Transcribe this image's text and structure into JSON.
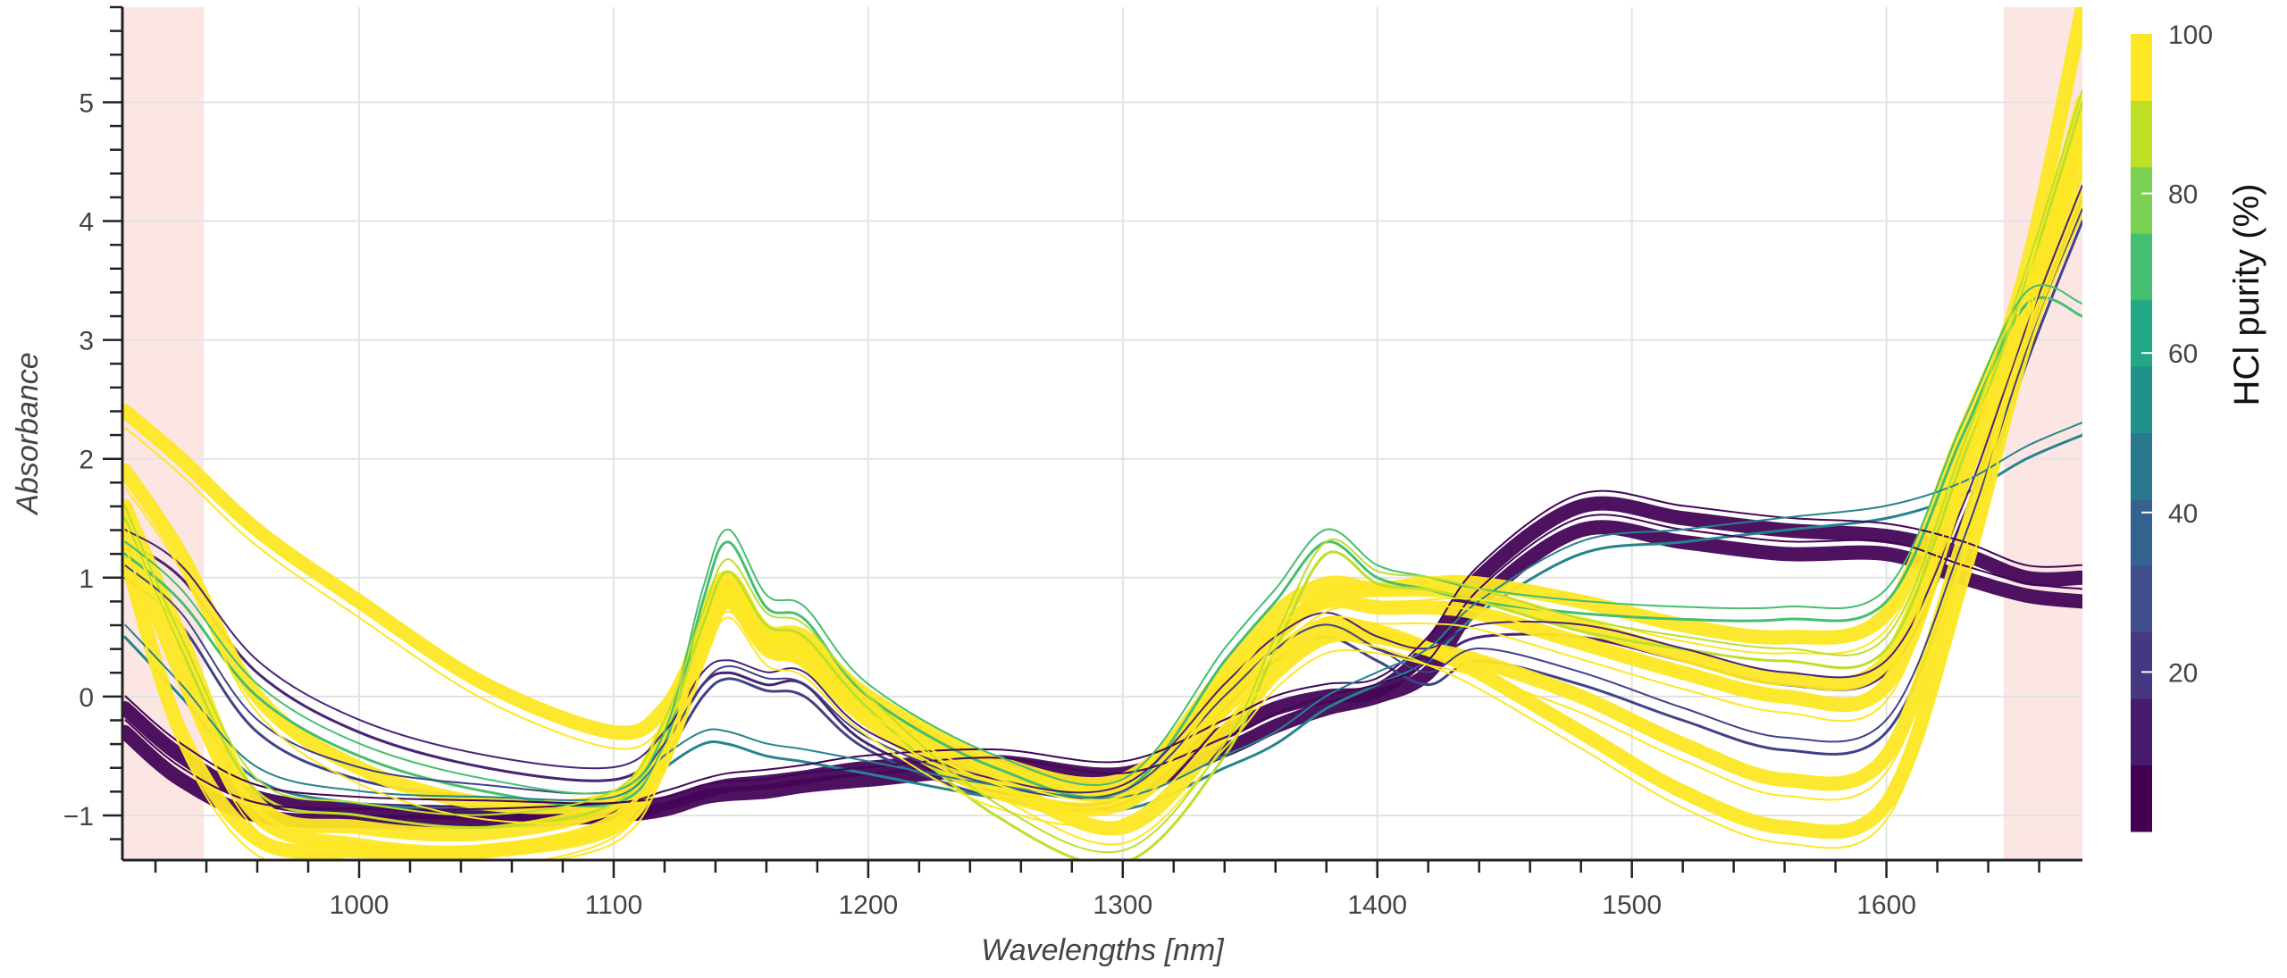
{
  "chart_data": {
    "type": "line",
    "xlabel": "Wavelengths [nm]",
    "ylabel": "Absorbance",
    "xlim": [
      907,
      1677
    ],
    "ylim": [
      -1.376,
      5.8
    ],
    "x_ticks": [
      "1000",
      "1100",
      "1200",
      "1300",
      "1400",
      "1500",
      "1600"
    ],
    "y_ticks": [
      "−1",
      "0",
      "1",
      "2",
      "3",
      "4",
      "5"
    ],
    "grid": true,
    "shaded_regions": [
      [
        907,
        939
      ],
      [
        1646,
        1677
      ]
    ],
    "shaded_color": "#fbe6e4",
    "colorbar": {
      "title": "HCl purity (%)",
      "range": [
        0,
        100
      ],
      "ticks": [
        "20",
        "40",
        "60",
        "80",
        "100"
      ],
      "colormap": "viridis",
      "bins": [
        "#440154",
        "#471c6c",
        "#453781",
        "#3d4e8a",
        "#34618d",
        "#2a788e",
        "#21918c",
        "#22a884",
        "#44bf70",
        "#7ad151",
        "#bddf26",
        "#fde725"
      ],
      "placement": "right"
    },
    "x": [
      908,
      930,
      960,
      1000,
      1050,
      1100,
      1120,
      1135,
      1145,
      1160,
      1175,
      1200,
      1250,
      1300,
      1340,
      1360,
      1380,
      1400,
      1420,
      1440,
      1480,
      1520,
      1560,
      1600,
      1630,
      1655,
      1677
    ],
    "series": [
      {
        "purity": 1,
        "values": [
          -0.1,
          -0.5,
          -0.85,
          -0.95,
          -0.98,
          -1.0,
          -0.9,
          -0.8,
          -0.75,
          -0.72,
          -0.68,
          -0.6,
          -0.55,
          -0.65,
          -0.3,
          -0.1,
          0.0,
          0.05,
          0.4,
          1.0,
          1.6,
          1.5,
          1.4,
          1.35,
          1.2,
          1.0,
          1.0
        ]
      },
      {
        "purity": 1,
        "values": [
          -0.3,
          -0.7,
          -1.0,
          -1.05,
          -1.05,
          -1.0,
          -0.95,
          -0.85,
          -0.82,
          -0.8,
          -0.75,
          -0.7,
          -0.62,
          -0.75,
          -0.45,
          -0.25,
          -0.1,
          0.0,
          0.2,
          0.8,
          1.4,
          1.3,
          1.2,
          1.2,
          1.0,
          0.85,
          0.8
        ]
      },
      {
        "purity": 10,
        "values": [
          1.3,
          1.0,
          0.2,
          -0.3,
          -0.6,
          -0.7,
          -0.4,
          0.1,
          0.2,
          0.1,
          0.1,
          -0.4,
          -0.8,
          -0.85,
          0.0,
          0.4,
          0.6,
          0.4,
          0.3,
          0.5,
          0.5,
          0.3,
          0.1,
          0.2,
          1.5,
          3.0,
          4.2
        ]
      },
      {
        "purity": 20,
        "values": [
          1.0,
          0.6,
          -0.3,
          -0.7,
          -0.85,
          -0.9,
          -0.5,
          0.0,
          0.15,
          0.05,
          0.0,
          -0.45,
          -0.85,
          -0.9,
          -0.1,
          0.3,
          0.5,
          0.3,
          0.1,
          0.3,
          0.1,
          -0.2,
          -0.45,
          -0.3,
          1.2,
          2.8,
          4.0
        ]
      },
      {
        "purity": 45,
        "values": [
          0.5,
          0.0,
          -0.7,
          -0.9,
          -0.95,
          -0.95,
          -0.6,
          -0.4,
          -0.4,
          -0.5,
          -0.55,
          -0.65,
          -0.85,
          -0.95,
          -0.6,
          -0.4,
          -0.1,
          0.1,
          0.3,
          0.7,
          1.2,
          1.3,
          1.4,
          1.5,
          1.7,
          2.0,
          2.2
        ]
      },
      {
        "purity": 100,
        "values": [
          1.9,
          1.2,
          0.0,
          -0.6,
          -0.9,
          -0.85,
          -0.3,
          0.5,
          0.9,
          0.55,
          0.5,
          0.0,
          -0.55,
          -0.7,
          0.1,
          0.55,
          0.8,
          0.75,
          0.75,
          0.7,
          0.45,
          0.2,
          0.0,
          0.1,
          1.8,
          3.3,
          5.0
        ]
      },
      {
        "purity": 100,
        "values": [
          2.4,
          2.0,
          1.4,
          0.8,
          0.1,
          -0.3,
          -0.1,
          0.5,
          0.85,
          0.5,
          0.45,
          -0.05,
          -0.6,
          -0.8,
          0.0,
          0.5,
          0.85,
          0.9,
          0.95,
          0.95,
          0.8,
          0.6,
          0.5,
          0.7,
          2.2,
          3.4,
          4.5
        ]
      },
      {
        "purity": 100,
        "values": [
          1.2,
          -0.3,
          -1.2,
          -1.3,
          -1.3,
          -1.1,
          -0.5,
          0.4,
          0.8,
          0.4,
          0.3,
          -0.2,
          -0.8,
          -0.9,
          -0.1,
          0.3,
          0.6,
          0.55,
          0.4,
          0.2,
          -0.3,
          -0.8,
          -1.1,
          -0.9,
          1.0,
          3.0,
          4.2
        ]
      },
      {
        "purity": 100,
        "values": [
          1.4,
          0.2,
          -1.0,
          -1.25,
          -1.3,
          -1.05,
          -0.4,
          0.55,
          0.95,
          0.5,
          0.4,
          -0.1,
          -0.7,
          -1.1,
          -0.3,
          0.2,
          0.5,
          0.5,
          0.4,
          0.3,
          0.0,
          -0.4,
          -0.7,
          -0.5,
          1.3,
          3.2,
          4.8
        ]
      },
      {
        "purity": 100,
        "values": [
          1.6,
          0.5,
          -0.9,
          -1.1,
          -1.15,
          -0.9,
          -0.3,
          0.6,
          1.0,
          0.5,
          0.45,
          -0.05,
          -0.6,
          -0.75,
          0.2,
          0.7,
          0.95,
          0.9,
          0.9,
          0.85,
          0.6,
          0.35,
          0.15,
          0.3,
          2.0,
          3.6,
          5.8
        ]
      },
      {
        "purity": 70,
        "values": [
          1.2,
          0.8,
          0.0,
          -0.5,
          -0.8,
          -0.9,
          -0.4,
          0.8,
          1.3,
          0.75,
          0.65,
          0.0,
          -0.6,
          -0.8,
          0.3,
          0.8,
          1.3,
          1.0,
          0.9,
          0.8,
          0.7,
          0.65,
          0.65,
          0.8,
          2.2,
          3.3,
          3.2
        ]
      },
      {
        "purity": 90,
        "values": [
          1.5,
          0.4,
          -0.8,
          -1.0,
          -1.1,
          -0.9,
          -0.3,
          0.6,
          1.05,
          0.6,
          0.5,
          -0.1,
          -1.0,
          -1.4,
          -0.5,
          0.4,
          1.2,
          0.95,
          0.9,
          0.8,
          0.55,
          0.4,
          0.3,
          0.4,
          2.0,
          3.5,
          5.0
        ]
      }
    ]
  }
}
